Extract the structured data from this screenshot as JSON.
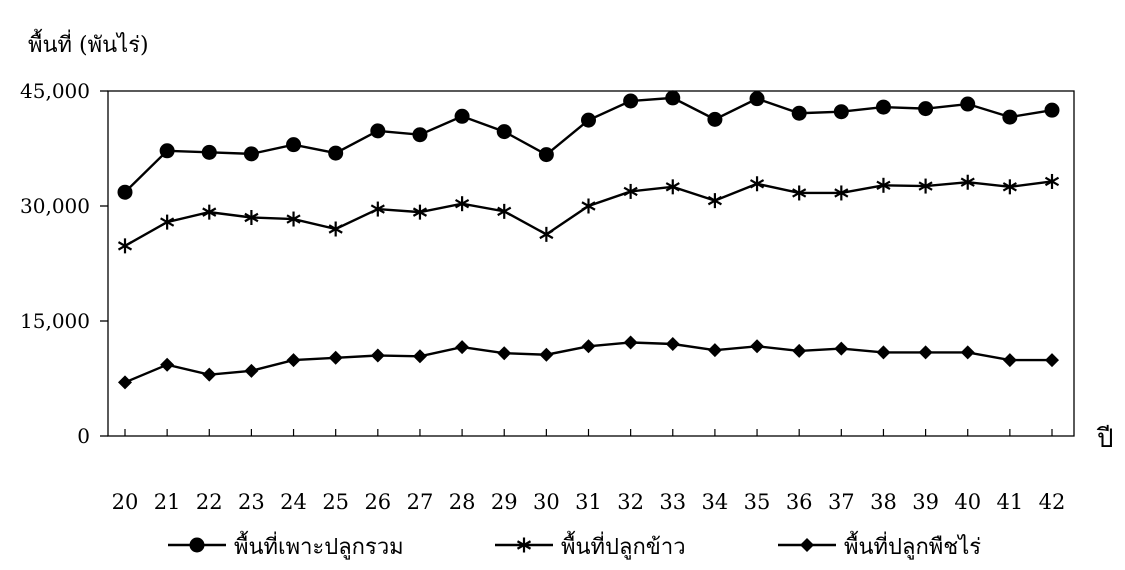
{
  "chart_data": {
    "type": "line",
    "ylabel": "พื้นที่ (พันไร่)",
    "xlabel": "ปี",
    "ylim": [
      0,
      45000
    ],
    "yticks": [
      0,
      15000,
      30000,
      45000
    ],
    "ytick_labels": [
      "0",
      "15,000",
      "30,000",
      "45,000"
    ],
    "categories": [
      "20",
      "21",
      "22",
      "23",
      "24",
      "25",
      "26",
      "27",
      "28",
      "29",
      "30",
      "31",
      "32",
      "33",
      "34",
      "35",
      "36",
      "37",
      "38",
      "39",
      "40",
      "41",
      "42"
    ],
    "grid": false,
    "legend_position": "bottom",
    "series": [
      {
        "name": "พื้นที่เพาะปลูกรวม",
        "marker": "circle",
        "values": [
          31800,
          37200,
          37000,
          36800,
          38000,
          36900,
          39800,
          39300,
          41700,
          39700,
          36700,
          41200,
          43700,
          44100,
          41300,
          44000,
          42100,
          42300,
          42900,
          42700,
          43300,
          41600,
          42500
        ]
      },
      {
        "name": "พื้นที่ปลูกข้าว",
        "marker": "asterisk",
        "values": [
          24800,
          27900,
          29200,
          28500,
          28300,
          27000,
          29600,
          29200,
          30300,
          29300,
          26300,
          30000,
          31900,
          32500,
          30700,
          32900,
          31700,
          31700,
          32700,
          32600,
          33100,
          32500,
          33200
        ]
      },
      {
        "name": "พื้นที่ปลูกพืชไร่",
        "marker": "diamond",
        "values": [
          7000,
          9300,
          8000,
          8500,
          9900,
          10200,
          10500,
          10400,
          11600,
          10800,
          10600,
          11700,
          12200,
          12000,
          11200,
          11700,
          11100,
          11400,
          10900,
          10900,
          10900,
          9900,
          9900
        ]
      }
    ]
  }
}
